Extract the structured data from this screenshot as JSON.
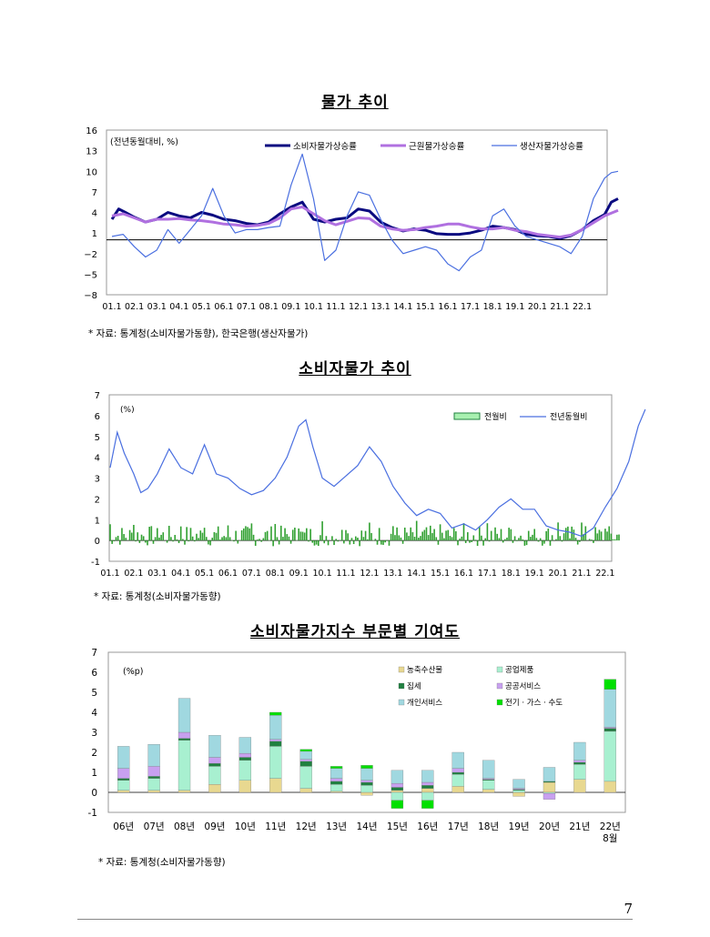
{
  "chart_data": [
    {
      "type": "line",
      "title": "물가 추이",
      "unit_label": "(전년동월대비, %)",
      "xlabels": [
        "01.1",
        "02.1",
        "03.1",
        "04.1",
        "05.1",
        "06.1",
        "07.1",
        "08.1",
        "09.1",
        "10.1",
        "11.1",
        "12.1",
        "13.1",
        "14.1",
        "15.1",
        "16.1",
        "17.1",
        "18.1",
        "19.1",
        "20.1",
        "21.1",
        "22.1"
      ],
      "yticks": [
        "16",
        "13",
        "10",
        "7",
        "4",
        "1",
        "−2",
        "−5",
        "−8"
      ],
      "ylim": [
        -8,
        16
      ],
      "series": [
        {
          "name": "소비자물가상승률",
          "color": "#0a0a80",
          "x": [
            0,
            0.3,
            0.6,
            1,
            1.5,
            2,
            2.5,
            3,
            3.5,
            4,
            4.5,
            5,
            5.5,
            6,
            6.5,
            7,
            7.5,
            8,
            8.5,
            9,
            9.5,
            10,
            10.5,
            11,
            11.5,
            12,
            12.5,
            13,
            13.5,
            14,
            14.5,
            15,
            15.5,
            16,
            16.5,
            17,
            17.5,
            18,
            18.5,
            19,
            19.5,
            20,
            20.5,
            21,
            21.5,
            22,
            22.3,
            22.6
          ],
          "y": [
            3,
            4.5,
            4,
            3.3,
            2.6,
            3,
            4,
            3.5,
            3.2,
            4,
            3.6,
            3,
            2.8,
            2.4,
            2.2,
            2.6,
            3.8,
            4.8,
            5.5,
            3,
            2.6,
            3,
            3.2,
            4.5,
            4.2,
            2.6,
            1.8,
            1.3,
            1.6,
            1.4,
            0.9,
            0.8,
            0.8,
            1,
            1.4,
            2,
            1.8,
            1.5,
            0.8,
            0.6,
            0.5,
            0.2,
            0.6,
            1.5,
            2.8,
            3.7,
            5.5,
            6
          ]
        },
        {
          "name": "근원물가상승률",
          "color": "#b070e0",
          "x": [
            0,
            0.5,
            1,
            1.5,
            2,
            2.5,
            3,
            3.5,
            4,
            4.5,
            5,
            5.5,
            6,
            6.5,
            7,
            7.5,
            8,
            8.5,
            9,
            9.5,
            10,
            10.5,
            11,
            11.5,
            12,
            12.5,
            13,
            13.5,
            14,
            14.5,
            15,
            15.5,
            16,
            16.5,
            17,
            17.5,
            18,
            18.5,
            19,
            19.5,
            20,
            20.5,
            21,
            21.5,
            22,
            22.6
          ],
          "y": [
            3.5,
            3.8,
            3.2,
            2.6,
            3,
            3,
            3.1,
            2.9,
            2.8,
            2.6,
            2.3,
            2.2,
            2,
            2.1,
            2.4,
            3.2,
            4.5,
            4.8,
            3.8,
            2.8,
            2.2,
            2.7,
            3.2,
            3.1,
            2,
            1.6,
            1.4,
            1.5,
            1.8,
            2,
            2.3,
            2.3,
            1.9,
            1.6,
            1.6,
            1.8,
            1.4,
            1.2,
            0.8,
            0.6,
            0.4,
            0.7,
            1.5,
            2.5,
            3.5,
            4.3
          ]
        },
        {
          "name": "생산자물가상승률",
          "color": "#4a6fe0",
          "x": [
            0,
            0.5,
            1,
            1.5,
            2,
            2.5,
            3,
            3.5,
            4,
            4.5,
            5,
            5.5,
            6,
            6.5,
            7,
            7.5,
            8,
            8.5,
            9,
            9.5,
            10,
            10.5,
            11,
            11.5,
            12,
            12.5,
            13,
            13.5,
            14,
            14.5,
            15,
            15.5,
            16,
            16.5,
            17,
            17.5,
            18,
            18.5,
            19,
            19.5,
            20,
            20.5,
            21,
            21.5,
            22,
            22.3,
            22.6
          ],
          "y": [
            0.5,
            0.8,
            -1,
            -2.5,
            -1.5,
            1.5,
            -0.5,
            1.5,
            3.5,
            7.5,
            3.5,
            1,
            1.5,
            1.5,
            1.8,
            2,
            8,
            12.5,
            6,
            -3,
            -1.5,
            3.5,
            7,
            6.5,
            3,
            0,
            -2,
            -1.5,
            -1,
            -1.5,
            -3.5,
            -4.5,
            -2.5,
            -1.5,
            3.5,
            4.5,
            2,
            0.5,
            0,
            -0.5,
            -1,
            -2,
            0.5,
            6,
            9,
            9.8,
            10
          ]
        }
      ]
    },
    {
      "type": "line+bar",
      "title": "소비자물가 추이",
      "unit_label": "(%)",
      "xlabels": [
        "01.1",
        "02.1",
        "03.1",
        "04.1",
        "05.1",
        "06.1",
        "07.1",
        "08.1",
        "09.1",
        "10.1",
        "11.1",
        "12.1",
        "13.1",
        "14.1",
        "15.1",
        "16.1",
        "17.1",
        "18.1",
        "19.1",
        "20.1",
        "21.1",
        "22.1"
      ],
      "yticks": [
        "7",
        "6",
        "5",
        "4",
        "3",
        "2",
        "1",
        "0",
        "-1"
      ],
      "ylim": [
        -1,
        7
      ],
      "series": [
        {
          "name": "전월비",
          "color": "#30a030",
          "type": "bar"
        },
        {
          "name": "전년동월비",
          "color": "#4a6fe0",
          "x": [
            0,
            0.3,
            0.6,
            1,
            1.3,
            1.6,
            2,
            2.5,
            3,
            3.5,
            4,
            4.5,
            5,
            5.5,
            6,
            6.5,
            7,
            7.5,
            8,
            8.3,
            8.6,
            9,
            9.5,
            10,
            10.5,
            11,
            11.5,
            12,
            12.5,
            13,
            13.5,
            14,
            14.5,
            15,
            15.5,
            16,
            16.5,
            17,
            17.5,
            18,
            18.5,
            19,
            19.5,
            20,
            20.5,
            21,
            21.5,
            22,
            22.4,
            22.7
          ],
          "y": [
            3.5,
            5.2,
            4.2,
            3.2,
            2.3,
            2.5,
            3.2,
            4.4,
            3.5,
            3.2,
            4.6,
            3.2,
            3,
            2.5,
            2.2,
            2.4,
            3,
            4,
            5.5,
            5.8,
            4.5,
            3,
            2.6,
            3.1,
            3.6,
            4.5,
            3.8,
            2.6,
            1.8,
            1.2,
            1.5,
            1.3,
            0.6,
            0.8,
            0.5,
            1,
            1.6,
            2,
            1.5,
            1.5,
            0.7,
            0.5,
            0.4,
            0.2,
            0.6,
            1.6,
            2.5,
            3.8,
            5.5,
            6.3
          ]
        }
      ]
    },
    {
      "type": "bar",
      "stacked": true,
      "title": "소비자물가지수 부문별 기여도",
      "unit_label": "(%p)",
      "categories": [
        "06년",
        "07년",
        "08년",
        "09년",
        "10년",
        "11년",
        "12년",
        "13년",
        "14년",
        "15년",
        "16년",
        "17년",
        "18년",
        "19년",
        "20년",
        "21년",
        "22년"
      ],
      "category_note": "8월",
      "yticks": [
        "7",
        "6",
        "5",
        "4",
        "3",
        "2",
        "1",
        "0",
        "-1"
      ],
      "ylim": [
        -1,
        7
      ],
      "series": [
        {
          "name": "농축수산물",
          "color": "#e8d890",
          "values": [
            0.1,
            0.1,
            0.1,
            0.4,
            0.6,
            0.7,
            0.2,
            0.05,
            -0.15,
            0.1,
            0.2,
            0.3,
            0.15,
            -0.2,
            0.5,
            0.65,
            0.55
          ]
        },
        {
          "name": "공업제품",
          "color": "#a8f0d0",
          "values": [
            0.5,
            0.6,
            2.5,
            0.9,
            1.0,
            1.6,
            1.1,
            0.35,
            0.35,
            -0.4,
            -0.4,
            0.6,
            0.45,
            0.1,
            -0.05,
            0.75,
            2.5
          ]
        },
        {
          "name": "집세",
          "color": "#208040",
          "values": [
            0.1,
            0.1,
            0.1,
            0.15,
            0.15,
            0.25,
            0.25,
            0.15,
            0.15,
            0.15,
            0.15,
            0.1,
            0.05,
            0.05,
            0.05,
            0.1,
            0.15
          ]
        },
        {
          "name": "공공서비스",
          "color": "#c8a0f0",
          "values": [
            0.5,
            0.5,
            0.3,
            0.3,
            0.2,
            0.1,
            0.1,
            0.15,
            0.1,
            0.2,
            0.15,
            0.2,
            0.05,
            0.05,
            -0.3,
            0.1,
            0.05
          ]
        },
        {
          "name": "개인서비스",
          "color": "#a0d8e0",
          "values": [
            1.1,
            1.1,
            1.7,
            1.1,
            0.8,
            1.2,
            0.4,
            0.5,
            0.6,
            0.65,
            0.6,
            0.8,
            0.9,
            0.45,
            0.7,
            0.9,
            1.9
          ]
        },
        {
          "name": "전기 · 가스 · 수도",
          "color": "#00e000",
          "values": [
            0,
            0,
            0,
            0,
            0,
            0.15,
            0.1,
            0.1,
            0.15,
            -0.4,
            -0.4,
            0,
            0,
            0,
            0,
            0,
            0.5
          ]
        }
      ]
    }
  ],
  "sources": [
    "* 자료: 통계청(소비자물가동향), 한국은행(생산자물가)",
    "* 자료: 통계청(소비자물가동향)",
    "* 자료: 통계청(소비자물가동향)"
  ],
  "page_number": "7"
}
